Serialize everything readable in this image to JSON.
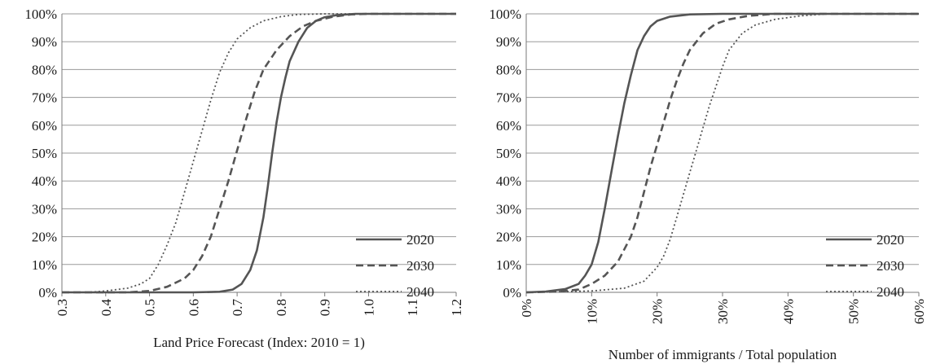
{
  "chart_data": [
    {
      "type": "line",
      "title": "",
      "xlabel": "Land Price Forecast (Index: 2010 = 1)",
      "ylabel": "",
      "xlim": [
        0.3,
        1.2
      ],
      "ylim": [
        0,
        1
      ],
      "x_ticks": [
        "0.3",
        "0.4",
        "0.5",
        "0.6",
        "0.7",
        "0.8",
        "0.9",
        "1.0",
        "1.1",
        "1.2"
      ],
      "y_ticks": [
        "0%",
        "10%",
        "20%",
        "30%",
        "40%",
        "50%",
        "60%",
        "70%",
        "80%",
        "90%",
        "100%"
      ],
      "grid": "horizontal",
      "legend": "bottom-right",
      "series": [
        {
          "name": "2020",
          "line": "solid",
          "color": "#555555",
          "points": [
            [
              0.3,
              0
            ],
            [
              0.6,
              0
            ],
            [
              0.66,
              0.002
            ],
            [
              0.69,
              0.01
            ],
            [
              0.71,
              0.03
            ],
            [
              0.73,
              0.08
            ],
            [
              0.745,
              0.15
            ],
            [
              0.76,
              0.27
            ],
            [
              0.77,
              0.38
            ],
            [
              0.78,
              0.5
            ],
            [
              0.79,
              0.61
            ],
            [
              0.8,
              0.7
            ],
            [
              0.81,
              0.77
            ],
            [
              0.82,
              0.83
            ],
            [
              0.84,
              0.9
            ],
            [
              0.86,
              0.95
            ],
            [
              0.88,
              0.975
            ],
            [
              0.9,
              0.988
            ],
            [
              0.93,
              0.996
            ],
            [
              0.97,
              1
            ],
            [
              1.2,
              1
            ]
          ]
        },
        {
          "name": "2030",
          "line": "dashed",
          "color": "#555555",
          "points": [
            [
              0.3,
              0
            ],
            [
              0.45,
              0
            ],
            [
              0.5,
              0.005
            ],
            [
              0.54,
              0.02
            ],
            [
              0.58,
              0.05
            ],
            [
              0.6,
              0.08
            ],
            [
              0.62,
              0.13
            ],
            [
              0.64,
              0.2
            ],
            [
              0.66,
              0.3
            ],
            [
              0.68,
              0.4
            ],
            [
              0.7,
              0.51
            ],
            [
              0.72,
              0.62
            ],
            [
              0.74,
              0.72
            ],
            [
              0.76,
              0.8
            ],
            [
              0.79,
              0.87
            ],
            [
              0.82,
              0.92
            ],
            [
              0.85,
              0.955
            ],
            [
              0.88,
              0.975
            ],
            [
              0.92,
              0.99
            ],
            [
              0.96,
              0.998
            ],
            [
              1.0,
              1
            ],
            [
              1.2,
              1
            ]
          ]
        },
        {
          "name": "2040",
          "line": "dotted",
          "color": "#555555",
          "points": [
            [
              0.3,
              0
            ],
            [
              0.36,
              0
            ],
            [
              0.4,
              0.005
            ],
            [
              0.45,
              0.015
            ],
            [
              0.48,
              0.03
            ],
            [
              0.5,
              0.05
            ],
            [
              0.52,
              0.1
            ],
            [
              0.54,
              0.17
            ],
            [
              0.56,
              0.25
            ],
            [
              0.58,
              0.36
            ],
            [
              0.6,
              0.47
            ],
            [
              0.62,
              0.58
            ],
            [
              0.64,
              0.69
            ],
            [
              0.66,
              0.79
            ],
            [
              0.68,
              0.86
            ],
            [
              0.7,
              0.91
            ],
            [
              0.73,
              0.95
            ],
            [
              0.76,
              0.975
            ],
            [
              0.8,
              0.99
            ],
            [
              0.84,
              0.998
            ],
            [
              0.9,
              1
            ],
            [
              1.2,
              1
            ]
          ]
        }
      ]
    },
    {
      "type": "line",
      "title": "",
      "xlabel": "Number of immigrants / Total population",
      "ylabel": "",
      "xlim": [
        0,
        0.6
      ],
      "ylim": [
        0,
        1
      ],
      "x_ticks": [
        "0%",
        "10%",
        "20%",
        "30%",
        "40%",
        "50%",
        "60%"
      ],
      "y_ticks": [
        "0%",
        "10%",
        "20%",
        "30%",
        "40%",
        "50%",
        "60%",
        "70%",
        "80%",
        "90%",
        "100%"
      ],
      "grid": "horizontal",
      "legend": "bottom-right",
      "series": [
        {
          "name": "2020",
          "line": "solid",
          "color": "#555555",
          "points": [
            [
              0,
              0
            ],
            [
              0.03,
              0.003
            ],
            [
              0.06,
              0.012
            ],
            [
              0.08,
              0.03
            ],
            [
              0.09,
              0.06
            ],
            [
              0.1,
              0.1
            ],
            [
              0.11,
              0.18
            ],
            [
              0.12,
              0.3
            ],
            [
              0.13,
              0.43
            ],
            [
              0.14,
              0.56
            ],
            [
              0.15,
              0.68
            ],
            [
              0.16,
              0.78
            ],
            [
              0.17,
              0.87
            ],
            [
              0.18,
              0.92
            ],
            [
              0.19,
              0.955
            ],
            [
              0.2,
              0.975
            ],
            [
              0.22,
              0.99
            ],
            [
              0.25,
              0.998
            ],
            [
              0.3,
              1
            ],
            [
              0.6,
              1
            ]
          ]
        },
        {
          "name": "2030",
          "line": "dashed",
          "color": "#555555",
          "points": [
            [
              0,
              0
            ],
            [
              0.05,
              0.003
            ],
            [
              0.08,
              0.01
            ],
            [
              0.1,
              0.03
            ],
            [
              0.12,
              0.06
            ],
            [
              0.14,
              0.11
            ],
            [
              0.16,
              0.2
            ],
            [
              0.17,
              0.27
            ],
            [
              0.18,
              0.36
            ],
            [
              0.19,
              0.45
            ],
            [
              0.2,
              0.53
            ],
            [
              0.21,
              0.61
            ],
            [
              0.22,
              0.69
            ],
            [
              0.23,
              0.76
            ],
            [
              0.24,
              0.82
            ],
            [
              0.25,
              0.87
            ],
            [
              0.27,
              0.93
            ],
            [
              0.29,
              0.965
            ],
            [
              0.31,
              0.98
            ],
            [
              0.34,
              0.993
            ],
            [
              0.38,
              1
            ],
            [
              0.6,
              1
            ]
          ]
        },
        {
          "name": "2040",
          "line": "dotted",
          "color": "#555555",
          "points": [
            [
              0,
              0
            ],
            [
              0.1,
              0.005
            ],
            [
              0.15,
              0.015
            ],
            [
              0.18,
              0.04
            ],
            [
              0.2,
              0.09
            ],
            [
              0.21,
              0.13
            ],
            [
              0.22,
              0.19
            ],
            [
              0.23,
              0.27
            ],
            [
              0.24,
              0.35
            ],
            [
              0.25,
              0.43
            ],
            [
              0.26,
              0.51
            ],
            [
              0.27,
              0.59
            ],
            [
              0.28,
              0.67
            ],
            [
              0.29,
              0.74
            ],
            [
              0.3,
              0.81
            ],
            [
              0.31,
              0.87
            ],
            [
              0.33,
              0.93
            ],
            [
              0.35,
              0.96
            ],
            [
              0.38,
              0.98
            ],
            [
              0.42,
              0.993
            ],
            [
              0.46,
              1
            ],
            [
              0.6,
              1
            ]
          ]
        }
      ]
    }
  ]
}
